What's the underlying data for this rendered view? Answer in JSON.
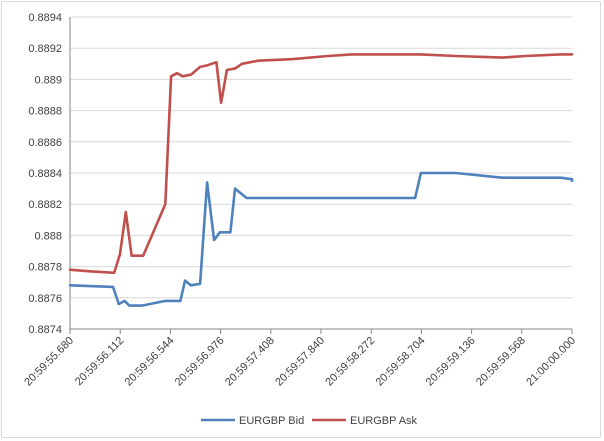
{
  "chart_data": {
    "type": "line",
    "title": "",
    "xlabel": "",
    "ylabel": "",
    "ylim": [
      0.8874,
      0.8894
    ],
    "y_ticks": [
      "0.8874",
      "0.8876",
      "0.8878",
      "0.888",
      "0.8882",
      "0.8884",
      "0.8886",
      "0.8888",
      "0.889",
      "0.8892",
      "0.8894"
    ],
    "x_ticks": [
      "20:59:55.680",
      "20:59:56.112",
      "20:59:56.544",
      "20:59:56.976",
      "20:59:57.408",
      "20:59:57.840",
      "20:59:58.272",
      "20:59:58.704",
      "20:59:59.136",
      "20:59:59.568",
      "21:00:00.000"
    ],
    "xlim_seconds": [
      55.68,
      60.0
    ],
    "grid": true,
    "legend_position": "bottom",
    "series": [
      {
        "name": "EURGBP Bid",
        "color": "#4f81bd",
        "points": [
          [
            55.68,
            0.88768
          ],
          [
            56.05,
            0.88767
          ],
          [
            56.1,
            0.88756
          ],
          [
            56.15,
            0.88758
          ],
          [
            56.19,
            0.88755
          ],
          [
            56.3,
            0.88755
          ],
          [
            56.5,
            0.88758
          ],
          [
            56.63,
            0.88758
          ],
          [
            56.67,
            0.88771
          ],
          [
            56.72,
            0.88768
          ],
          [
            56.8,
            0.88769
          ],
          [
            56.86,
            0.88834
          ],
          [
            56.92,
            0.88797
          ],
          [
            56.97,
            0.88802
          ],
          [
            57.06,
            0.88802
          ],
          [
            57.1,
            0.8883
          ],
          [
            57.2,
            0.88824
          ],
          [
            57.5,
            0.88824
          ],
          [
            58.0,
            0.88824
          ],
          [
            58.65,
            0.88824
          ],
          [
            58.7,
            0.8884
          ],
          [
            59.0,
            0.8884
          ],
          [
            59.4,
            0.88837
          ],
          [
            59.9,
            0.88837
          ],
          [
            60.0,
            0.88836
          ],
          [
            60.1,
            0.88835
          ],
          [
            60.2,
            0.88836
          ]
        ]
      },
      {
        "name": "EURGBP Ask",
        "color": "#c0504d",
        "points": [
          [
            55.68,
            0.88778
          ],
          [
            55.85,
            0.88777
          ],
          [
            56.06,
            0.88776
          ],
          [
            56.11,
            0.88788
          ],
          [
            56.16,
            0.88815
          ],
          [
            56.21,
            0.88787
          ],
          [
            56.31,
            0.88787
          ],
          [
            56.5,
            0.8882
          ],
          [
            56.55,
            0.88902
          ],
          [
            56.6,
            0.88904
          ],
          [
            56.65,
            0.88902
          ],
          [
            56.72,
            0.88903
          ],
          [
            56.8,
            0.88908
          ],
          [
            56.86,
            0.88909
          ],
          [
            56.94,
            0.88911
          ],
          [
            56.98,
            0.88885
          ],
          [
            57.03,
            0.88906
          ],
          [
            57.1,
            0.88907
          ],
          [
            57.16,
            0.8891
          ],
          [
            57.3,
            0.88912
          ],
          [
            57.6,
            0.88913
          ],
          [
            57.9,
            0.88915
          ],
          [
            58.1,
            0.88916
          ],
          [
            58.4,
            0.88916
          ],
          [
            58.7,
            0.88916
          ],
          [
            59.0,
            0.88915
          ],
          [
            59.4,
            0.88914
          ],
          [
            59.6,
            0.88915
          ],
          [
            59.9,
            0.88916
          ],
          [
            60.2,
            0.88916
          ]
        ]
      }
    ]
  }
}
